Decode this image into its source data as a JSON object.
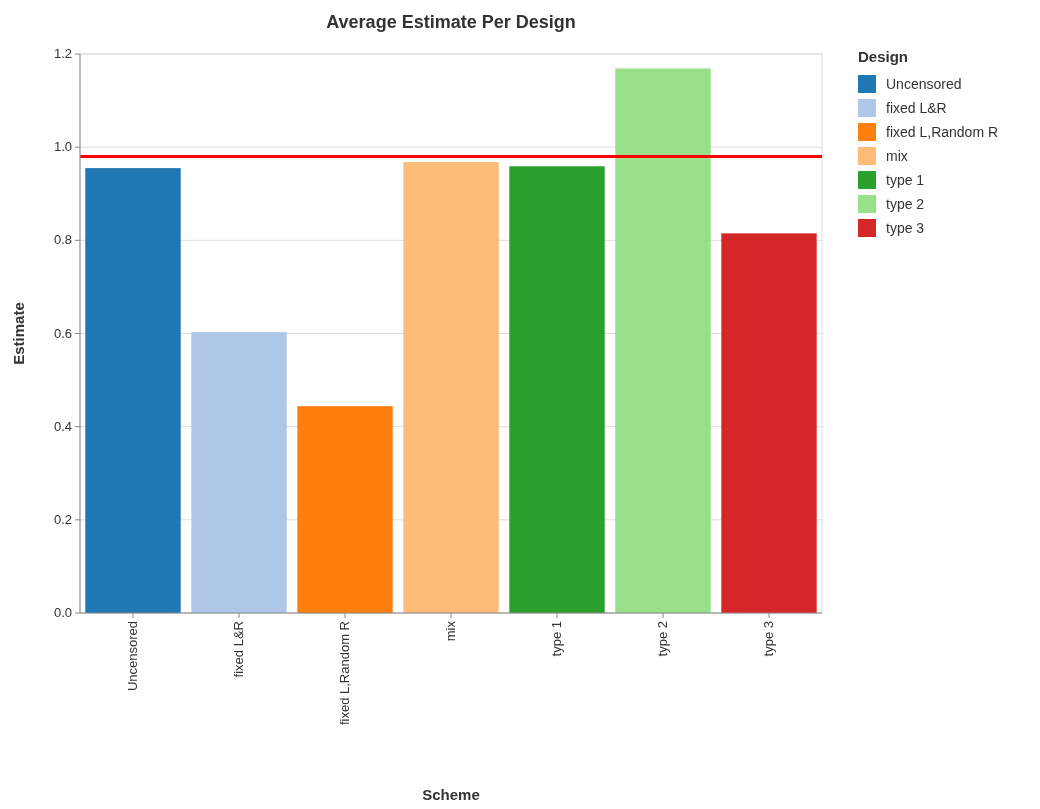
{
  "chart_data": {
    "type": "bar",
    "title": "Average Estimate Per Design",
    "xlabel": "Scheme",
    "ylabel": "Estimate",
    "legend_title": "Design",
    "categories": [
      "Uncensored",
      "fixed L&R",
      "fixed L,Random R",
      "mix",
      "type 1",
      "type 2",
      "type 3"
    ],
    "stacked": true,
    "series": [
      {
        "name": "Uncensored",
        "color": "#1f77b4",
        "values": [
          0.955,
          null,
          null,
          null,
          null,
          null,
          null
        ]
      },
      {
        "name": "fixed L&R",
        "color": "#aec7e8",
        "values": [
          null,
          0.603,
          null,
          null,
          null,
          null,
          null
        ]
      },
      {
        "name": "fixed L,Random R",
        "color": "#ff7f0e",
        "values": [
          null,
          null,
          0.444,
          null,
          null,
          null,
          null
        ]
      },
      {
        "name": "mix",
        "color": "#ffbb78",
        "values": [
          null,
          null,
          null,
          0.968,
          null,
          null,
          null
        ]
      },
      {
        "name": "type 1",
        "color": "#2ca02c",
        "values": [
          null,
          null,
          null,
          null,
          0.959,
          null,
          null
        ]
      },
      {
        "name": "type 2",
        "color": "#98df8a",
        "values": [
          null,
          null,
          null,
          null,
          null,
          1.169,
          null
        ]
      },
      {
        "name": "type 3",
        "color": "#d62728",
        "values": [
          null,
          null,
          null,
          null,
          null,
          null,
          0.815
        ]
      }
    ],
    "ylim": [
      0,
      1.2
    ],
    "yticks": [
      {
        "value": 0,
        "label": "0.0"
      },
      {
        "value": 0.2,
        "label": "0.2"
      },
      {
        "value": 0.4,
        "label": "0.4"
      },
      {
        "value": 0.6,
        "label": "0.6"
      },
      {
        "value": 0.8,
        "label": "0.8"
      },
      {
        "value": 1,
        "label": "1.0"
      },
      {
        "value": 1.2,
        "label": "1.2"
      }
    ],
    "grid": "y",
    "legend": "top right",
    "ref_lines": [
      {
        "axis": "y",
        "value": 0.98,
        "color": "#ff0000"
      }
    ]
  }
}
